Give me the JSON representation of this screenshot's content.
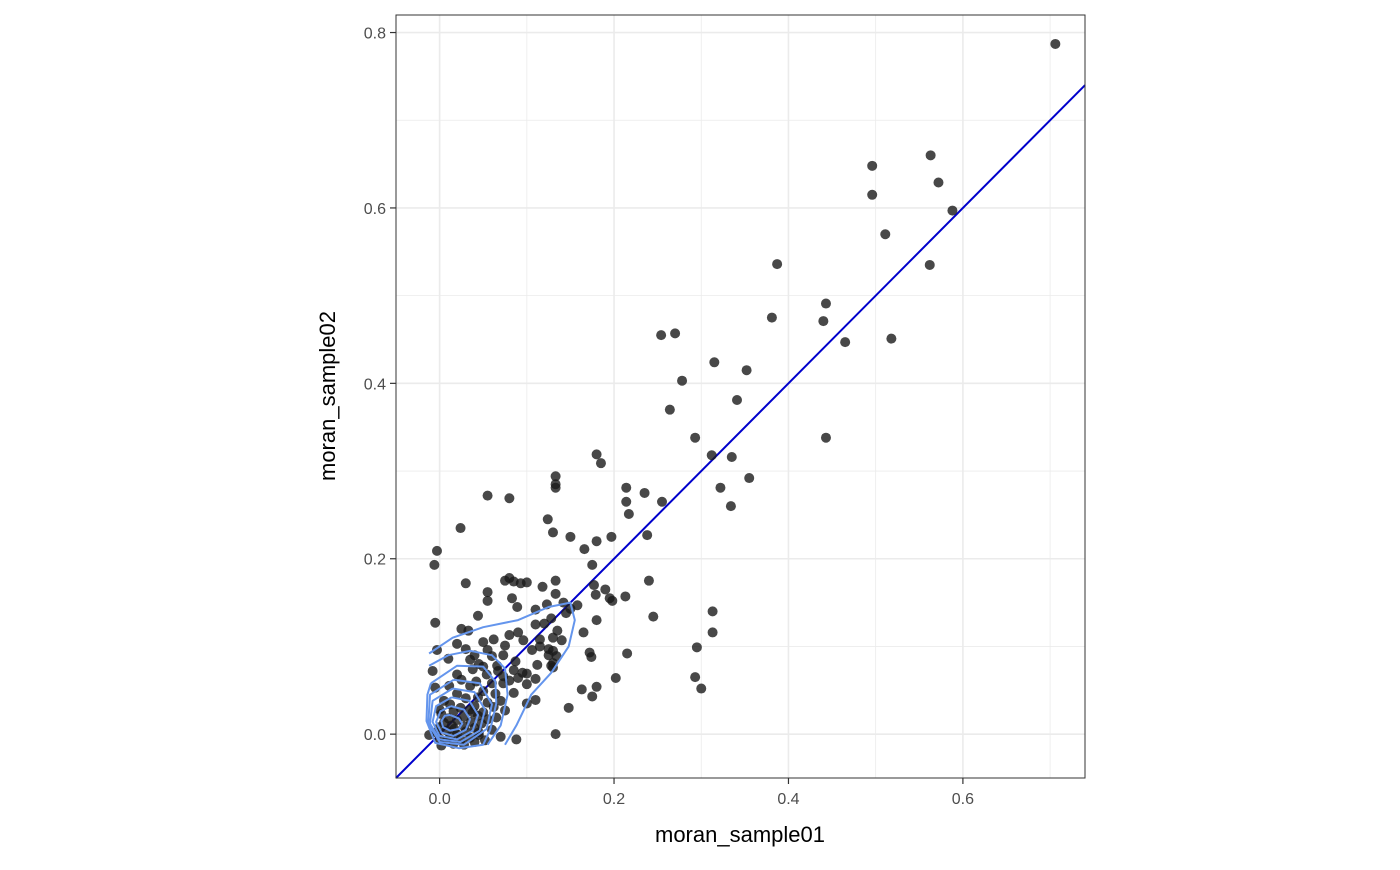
{
  "chart_data": {
    "type": "scatter",
    "title": "",
    "xlabel": "moran_sample01",
    "ylabel": "moran_sample02",
    "xlim": [
      -0.05,
      0.74
    ],
    "ylim": [
      -0.05,
      0.82
    ],
    "x_ticks": [
      0.0,
      0.2,
      0.4,
      0.6
    ],
    "y_ticks": [
      0.0,
      0.2,
      0.4,
      0.6,
      0.8
    ],
    "x_tick_labels": [
      "0.0",
      "0.2",
      "0.4",
      "0.6"
    ],
    "y_tick_labels": [
      "0.0",
      "0.2",
      "0.4",
      "0.6",
      "0.8"
    ],
    "grid": true,
    "legend": "none",
    "colors": {
      "points": "#1a1a1a",
      "reference_line": "#0000cc",
      "density_contours": "#6495ed",
      "grid": "#ebebeb",
      "panel_border": "#333333"
    },
    "reference_line": {
      "slope": 1.0,
      "intercept": 0.0
    },
    "points": [
      [
        0.706,
        0.787
      ],
      [
        0.563,
        0.66
      ],
      [
        0.496,
        0.648
      ],
      [
        0.572,
        0.629
      ],
      [
        0.496,
        0.615
      ],
      [
        0.588,
        0.597
      ],
      [
        0.511,
        0.57
      ],
      [
        0.387,
        0.536
      ],
      [
        0.562,
        0.535
      ],
      [
        0.443,
        0.491
      ],
      [
        0.381,
        0.475
      ],
      [
        0.44,
        0.471
      ],
      [
        0.254,
        0.455
      ],
      [
        0.27,
        0.457
      ],
      [
        0.518,
        0.451
      ],
      [
        0.465,
        0.447
      ],
      [
        0.315,
        0.424
      ],
      [
        0.352,
        0.415
      ],
      [
        0.278,
        0.403
      ],
      [
        0.341,
        0.381
      ],
      [
        0.264,
        0.37
      ],
      [
        0.443,
        0.338
      ],
      [
        0.293,
        0.338
      ],
      [
        0.312,
        0.318
      ],
      [
        0.335,
        0.316
      ],
      [
        0.18,
        0.319
      ],
      [
        0.185,
        0.309
      ],
      [
        0.133,
        0.294
      ],
      [
        0.355,
        0.292
      ],
      [
        0.133,
        0.285
      ],
      [
        0.133,
        0.281
      ],
      [
        0.322,
        0.281
      ],
      [
        0.214,
        0.281
      ],
      [
        0.235,
        0.275
      ],
      [
        0.055,
        0.272
      ],
      [
        0.08,
        0.269
      ],
      [
        0.255,
        0.265
      ],
      [
        0.214,
        0.265
      ],
      [
        0.334,
        0.26
      ],
      [
        0.217,
        0.251
      ],
      [
        0.124,
        0.245
      ],
      [
        0.024,
        0.235
      ],
      [
        0.13,
        0.23
      ],
      [
        0.238,
        0.227
      ],
      [
        0.15,
        0.225
      ],
      [
        0.197,
        0.225
      ],
      [
        0.18,
        0.22
      ],
      [
        0.166,
        0.211
      ],
      [
        -0.003,
        0.209
      ],
      [
        -0.006,
        0.193
      ],
      [
        0.175,
        0.193
      ],
      [
        0.08,
        0.178
      ],
      [
        0.085,
        0.174
      ],
      [
        0.075,
        0.175
      ],
      [
        0.1,
        0.173
      ],
      [
        0.093,
        0.172
      ],
      [
        0.03,
        0.172
      ],
      [
        0.133,
        0.175
      ],
      [
        0.24,
        0.175
      ],
      [
        0.177,
        0.17
      ],
      [
        0.118,
        0.168
      ],
      [
        0.19,
        0.165
      ],
      [
        0.055,
        0.162
      ],
      [
        0.133,
        0.16
      ],
      [
        0.179,
        0.159
      ],
      [
        0.213,
        0.157
      ],
      [
        0.195,
        0.155
      ],
      [
        0.198,
        0.152
      ],
      [
        0.083,
        0.155
      ],
      [
        0.055,
        0.152
      ],
      [
        0.142,
        0.15
      ],
      [
        0.158,
        0.147
      ],
      [
        0.123,
        0.148
      ],
      [
        0.089,
        0.145
      ],
      [
        0.11,
        0.142
      ],
      [
        0.044,
        0.135
      ],
      [
        0.245,
        0.134
      ],
      [
        0.313,
        0.14
      ],
      [
        0.15,
        0.143
      ],
      [
        0.145,
        0.138
      ],
      [
        0.128,
        0.132
      ],
      [
        0.18,
        0.13
      ],
      [
        -0.005,
        0.127
      ],
      [
        0.12,
        0.126
      ],
      [
        0.11,
        0.125
      ],
      [
        0.025,
        0.12
      ],
      [
        0.033,
        0.118
      ],
      [
        0.135,
        0.118
      ],
      [
        0.165,
        0.116
      ],
      [
        0.313,
        0.116
      ],
      [
        0.09,
        0.116
      ],
      [
        0.08,
        0.113
      ],
      [
        0.13,
        0.11
      ],
      [
        0.115,
        0.108
      ],
      [
        0.096,
        0.107
      ],
      [
        0.062,
        0.108
      ],
      [
        0.05,
        0.105
      ],
      [
        0.14,
        0.107
      ],
      [
        0.02,
        0.103
      ],
      [
        0.075,
        0.101
      ],
      [
        0.115,
        0.1
      ],
      [
        0.125,
        0.097
      ],
      [
        0.295,
        0.099
      ],
      [
        -0.003,
        0.096
      ],
      [
        0.03,
        0.097
      ],
      [
        0.055,
        0.096
      ],
      [
        0.106,
        0.096
      ],
      [
        0.13,
        0.095
      ],
      [
        0.172,
        0.093
      ],
      [
        0.215,
        0.092
      ],
      [
        0.125,
        0.09
      ],
      [
        0.073,
        0.09
      ],
      [
        0.04,
        0.09
      ],
      [
        0.06,
        0.089
      ],
      [
        0.134,
        0.089
      ],
      [
        0.174,
        0.088
      ],
      [
        0.01,
        0.086
      ],
      [
        0.035,
        0.085
      ],
      [
        0.087,
        0.083
      ],
      [
        0.13,
        0.081
      ],
      [
        0.045,
        0.08
      ],
      [
        0.112,
        0.079
      ],
      [
        0.128,
        0.078
      ],
      [
        0.13,
        0.076
      ],
      [
        0.05,
        0.077
      ],
      [
        0.066,
        0.078
      ],
      [
        0.038,
        0.074
      ],
      [
        0.085,
        0.073
      ],
      [
        -0.008,
        0.072
      ],
      [
        0.095,
        0.07
      ],
      [
        0.067,
        0.072
      ],
      [
        0.1,
        0.069
      ],
      [
        0.054,
        0.068
      ],
      [
        0.02,
        0.068
      ],
      [
        0.073,
        0.066
      ],
      [
        0.09,
        0.064
      ],
      [
        0.293,
        0.065
      ],
      [
        0.202,
        0.064
      ],
      [
        0.11,
        0.063
      ],
      [
        0.08,
        0.061
      ],
      [
        0.025,
        0.062
      ],
      [
        0.042,
        0.06
      ],
      [
        0.06,
        0.058
      ],
      [
        0.1,
        0.057
      ],
      [
        0.073,
        0.058
      ],
      [
        0.011,
        0.055
      ],
      [
        0.035,
        0.055
      ],
      [
        0.18,
        0.054
      ],
      [
        0.3,
        0.052
      ],
      [
        0.163,
        0.051
      ],
      [
        -0.005,
        0.053
      ],
      [
        0.05,
        0.049
      ],
      [
        0.085,
        0.047
      ],
      [
        0.064,
        0.046
      ],
      [
        0.02,
        0.046
      ],
      [
        0.175,
        0.043
      ],
      [
        0.044,
        0.042
      ],
      [
        0.03,
        0.041
      ],
      [
        0.11,
        0.039
      ],
      [
        0.07,
        0.038
      ],
      [
        0.005,
        0.038
      ],
      [
        0.055,
        0.036
      ],
      [
        0.1,
        0.035
      ],
      [
        0.012,
        0.034
      ],
      [
        0.04,
        0.032
      ],
      [
        0.024,
        0.03
      ],
      [
        0.062,
        0.031
      ],
      [
        0.148,
        0.03
      ],
      [
        0.0,
        0.028
      ],
      [
        0.035,
        0.028
      ],
      [
        0.075,
        0.027
      ],
      [
        0.016,
        0.026
      ],
      [
        0.05,
        0.025
      ],
      [
        0.002,
        0.023
      ],
      [
        0.044,
        0.021
      ],
      [
        0.028,
        0.02
      ],
      [
        0.065,
        0.019
      ],
      [
        0.01,
        0.018
      ],
      [
        0.055,
        0.017
      ],
      [
        0.02,
        0.016
      ],
      [
        0.036,
        0.014
      ],
      [
        0.005,
        0.013
      ],
      [
        0.048,
        0.012
      ],
      [
        0.014,
        0.01
      ],
      [
        0.028,
        0.009
      ],
      [
        0.0,
        0.008
      ],
      [
        0.04,
        0.007
      ],
      [
        0.017,
        0.006
      ],
      [
        0.06,
        0.005
      ],
      [
        0.008,
        0.004
      ],
      [
        0.03,
        0.003
      ],
      [
        -0.004,
        0.002
      ],
      [
        0.02,
        0.0
      ],
      [
        0.045,
        -0.001
      ],
      [
        0.133,
        0.0
      ],
      [
        -0.012,
        -0.001
      ],
      [
        0.012,
        -0.003
      ],
      [
        0.035,
        -0.004
      ],
      [
        0.07,
        -0.003
      ],
      [
        0.0,
        -0.005
      ],
      [
        0.024,
        -0.006
      ],
      [
        0.052,
        -0.007
      ],
      [
        0.088,
        -0.006
      ],
      [
        0.008,
        -0.008
      ],
      [
        0.04,
        -0.009
      ],
      [
        0.016,
        -0.011
      ],
      [
        0.002,
        -0.013
      ],
      [
        0.028,
        -0.012
      ],
      [
        0.045,
        0.002
      ],
      [
        0.038,
        0.025
      ]
    ],
    "density_contours": [
      [
        [
          0.012,
          0.022
        ],
        [
          0.022,
          0.018
        ],
        [
          0.026,
          0.012
        ],
        [
          0.022,
          0.006
        ],
        [
          0.012,
          0.004
        ],
        [
          0.004,
          0.008
        ],
        [
          0.002,
          0.015
        ],
        [
          0.006,
          0.021
        ],
        [
          0.012,
          0.022
        ]
      ],
      [
        [
          0.013,
          0.032
        ],
        [
          0.028,
          0.028
        ],
        [
          0.035,
          0.017
        ],
        [
          0.03,
          0.005
        ],
        [
          0.016,
          -0.002
        ],
        [
          0.002,
          0.002
        ],
        [
          -0.004,
          0.014
        ],
        [
          0.001,
          0.026
        ],
        [
          0.013,
          0.032
        ]
      ],
      [
        [
          0.014,
          0.042
        ],
        [
          0.034,
          0.038
        ],
        [
          0.044,
          0.022
        ],
        [
          0.038,
          0.004
        ],
        [
          0.02,
          -0.006
        ],
        [
          0.0,
          -0.002
        ],
        [
          -0.008,
          0.014
        ],
        [
          -0.004,
          0.032
        ],
        [
          0.014,
          0.042
        ]
      ],
      [
        [
          0.015,
          0.052
        ],
        [
          0.04,
          0.048
        ],
        [
          0.052,
          0.028
        ],
        [
          0.046,
          0.004
        ],
        [
          0.024,
          -0.009
        ],
        [
          0.0,
          -0.006
        ],
        [
          -0.011,
          0.012
        ],
        [
          -0.008,
          0.038
        ],
        [
          0.015,
          0.052
        ]
      ],
      [
        [
          0.016,
          0.062
        ],
        [
          0.046,
          0.058
        ],
        [
          0.06,
          0.034
        ],
        [
          0.054,
          0.006
        ],
        [
          0.028,
          -0.012
        ],
        [
          0.0,
          -0.009
        ],
        [
          -0.013,
          0.012
        ],
        [
          -0.011,
          0.045
        ],
        [
          0.016,
          0.062
        ]
      ],
      [
        [
          -0.01,
          0.058
        ],
        [
          0.02,
          0.078
        ],
        [
          0.05,
          0.077
        ],
        [
          0.064,
          0.06
        ],
        [
          0.065,
          0.035
        ],
        [
          0.058,
          0.005
        ],
        [
          0.05,
          -0.012
        ],
        [
          0.022,
          -0.016
        ],
        [
          -0.005,
          -0.01
        ],
        [
          -0.015,
          0.015
        ],
        [
          -0.014,
          0.045
        ],
        [
          -0.01,
          0.058
        ]
      ],
      [
        [
          -0.012,
          0.078
        ],
        [
          0.01,
          0.09
        ],
        [
          0.035,
          0.095
        ],
        [
          0.06,
          0.09
        ],
        [
          0.075,
          0.075
        ],
        [
          0.078,
          0.045
        ],
        [
          0.07,
          0.01
        ],
        [
          0.055,
          -0.012
        ]
      ],
      [
        [
          -0.012,
          0.092
        ],
        [
          0.015,
          0.11
        ],
        [
          0.05,
          0.122
        ],
        [
          0.09,
          0.13
        ],
        [
          0.125,
          0.145
        ],
        [
          0.15,
          0.15
        ],
        [
          0.155,
          0.13
        ],
        [
          0.148,
          0.1
        ],
        [
          0.128,
          0.07
        ],
        [
          0.105,
          0.045
        ],
        [
          0.088,
          0.01
        ],
        [
          0.075,
          -0.012
        ]
      ]
    ]
  }
}
